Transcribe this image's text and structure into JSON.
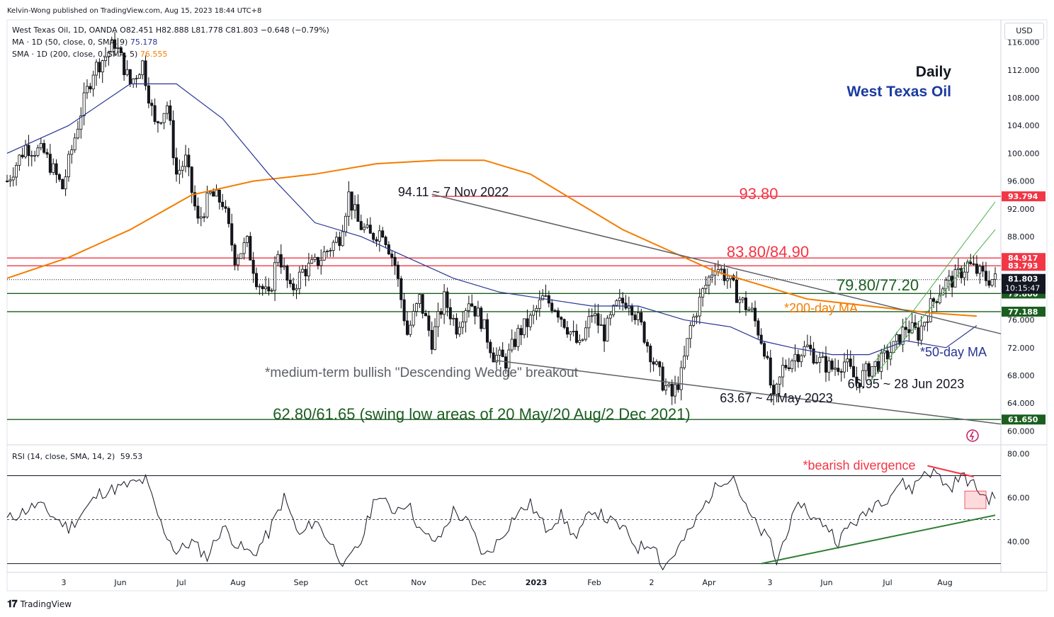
{
  "header": {
    "published": "Kelvin-Wong published on TradingView.com, Aug 15, 2023 18:44 UTC+8",
    "symbol_line": "West Texas Oil, 1D, OANDA  O82.451  H82.888  L81.778  C81.803  −0.648 (−0.79%)",
    "ma50_line": "MA · 1D (50, close, 0, SMA, 9)",
    "ma50_value": "75.178",
    "sma200_line": "SMA · 1D (200, close, 0, SMA, 5)",
    "sma200_value": "76.555",
    "rsi_line": "RSI (14, close, SMA, 14, 2)",
    "rsi_value": "59.53",
    "currency": "USD"
  },
  "footer": {
    "brand": "TradingView",
    "logo": "tradingview-logo-icon"
  },
  "colors": {
    "resistance": "#f23645",
    "support": "#1b5e20",
    "ma200": "#f57c00",
    "ma50": "#283593",
    "wedge": "#5d6066",
    "channel": "#4caf50",
    "price_label_bg": "#131722"
  },
  "chart_data": [
    {
      "type": "candlestick",
      "title": "Daily",
      "subtitle": "West Texas Oil",
      "x_ticks": [
        "3",
        "Jun",
        "Jul",
        "Aug",
        "Sep",
        "Oct",
        "Nov",
        "Dec",
        "2023",
        "Feb",
        "2",
        "Apr",
        "3",
        "Jun",
        "Jul",
        "Aug"
      ],
      "y_ticks": [
        "116.000",
        "112.000",
        "108.000",
        "104.000",
        "100.000",
        "96.000",
        "92.000",
        "88.000",
        "84.000",
        "80.000",
        "76.000",
        "72.000",
        "68.000",
        "64.000",
        "60.000"
      ],
      "ylim": [
        58.0,
        118.0
      ],
      "grid": false,
      "levels": [
        {
          "value": 93.8,
          "label": "93.80",
          "axis_label": "93.794",
          "color": "resistance"
        },
        {
          "value": 84.917,
          "label": "83.80/84.90",
          "axis_label": "84.917",
          "color": "resistance"
        },
        {
          "value": 83.793,
          "label": "",
          "axis_label": "83.793",
          "color": "resistance"
        },
        {
          "value": 79.8,
          "label": "79.80/77.20",
          "axis_label": "79.800",
          "color": "support"
        },
        {
          "value": 77.188,
          "label": "",
          "axis_label": "77.188",
          "color": "support"
        },
        {
          "value": 61.65,
          "label": "62.80/61.65 (swing low areas of 20 May/20 Aug/2 Dec 2021)",
          "axis_label": "61.650",
          "color": "support"
        }
      ],
      "last_price": {
        "value": 81.803,
        "label": "81.803",
        "countdown": "10:15:47"
      },
      "annotations": [
        "94.11 ~ 7 Nov 2022",
        "*medium-term bullish \"Descending Wedge\" breakout",
        "63.67 ~ 4 May 2023",
        "66.95 ~ 28 Jun 2023",
        "*200-day MA",
        "*50-day MA"
      ],
      "close_path": [
        [
          0,
          96
        ],
        [
          6,
          101
        ],
        [
          12,
          100
        ],
        [
          18,
          95
        ],
        [
          24,
          106
        ],
        [
          28,
          112
        ],
        [
          32,
          114
        ],
        [
          35,
          116
        ],
        [
          40,
          110
        ],
        [
          44,
          113
        ],
        [
          48,
          104
        ],
        [
          52,
          107
        ],
        [
          55,
          97
        ],
        [
          58,
          99
        ],
        [
          62,
          90
        ],
        [
          66,
          94
        ],
        [
          70,
          93
        ],
        [
          74,
          85
        ],
        [
          78,
          87
        ],
        [
          81,
          82
        ],
        [
          85,
          79
        ],
        [
          88,
          86
        ],
        [
          92,
          80
        ],
        [
          96,
          83
        ],
        [
          100,
          84
        ],
        [
          104,
          86
        ],
        [
          108,
          88
        ],
        [
          111,
          94
        ],
        [
          114,
          90
        ],
        [
          118,
          88
        ],
        [
          122,
          89
        ],
        [
          126,
          84
        ],
        [
          130,
          74
        ],
        [
          134,
          79
        ],
        [
          138,
          73
        ],
        [
          142,
          79
        ],
        [
          146,
          75
        ],
        [
          150,
          79
        ],
        [
          154,
          76
        ],
        [
          158,
          71
        ],
        [
          162,
          70
        ],
        [
          166,
          74
        ],
        [
          170,
          76
        ],
        [
          174,
          79
        ],
        [
          178,
          78
        ],
        [
          182,
          75
        ],
        [
          186,
          72
        ],
        [
          190,
          77
        ],
        [
          194,
          74
        ],
        [
          198,
          78
        ],
        [
          202,
          79
        ],
        [
          206,
          75
        ],
        [
          210,
          70
        ],
        [
          213,
          67
        ],
        [
          216,
          65
        ],
        [
          219,
          68
        ],
        [
          222,
          75
        ],
        [
          226,
          80
        ],
        [
          230,
          84
        ],
        [
          234,
          82
        ],
        [
          238,
          79
        ],
        [
          242,
          77
        ],
        [
          246,
          72
        ],
        [
          249,
          64
        ],
        [
          252,
          69
        ],
        [
          256,
          71
        ],
        [
          260,
          72
        ],
        [
          264,
          70
        ],
        [
          268,
          69
        ],
        [
          272,
          70
        ],
        [
          276,
          67
        ],
        [
          280,
          69
        ],
        [
          284,
          70
        ],
        [
          288,
          72
        ],
        [
          292,
          75
        ],
        [
          296,
          74
        ],
        [
          300,
          78
        ],
        [
          304,
          81
        ],
        [
          308,
          82
        ],
        [
          312,
          84
        ],
        [
          315,
          83
        ],
        [
          318,
          82
        ],
        [
          321,
          81.8
        ]
      ],
      "ma200_path": [
        [
          0,
          82
        ],
        [
          20,
          85
        ],
        [
          40,
          89
        ],
        [
          60,
          94
        ],
        [
          80,
          96
        ],
        [
          100,
          97
        ],
        [
          120,
          98.5
        ],
        [
          140,
          99
        ],
        [
          155,
          99
        ],
        [
          170,
          97
        ],
        [
          185,
          93
        ],
        [
          200,
          89
        ],
        [
          215,
          86
        ],
        [
          230,
          83
        ],
        [
          245,
          81
        ],
        [
          260,
          79
        ],
        [
          280,
          78
        ],
        [
          300,
          77
        ],
        [
          315,
          76.55
        ]
      ],
      "ma50_path": [
        [
          0,
          100
        ],
        [
          20,
          104
        ],
        [
          40,
          110
        ],
        [
          55,
          110
        ],
        [
          70,
          105
        ],
        [
          85,
          97
        ],
        [
          100,
          90
        ],
        [
          115,
          88
        ],
        [
          130,
          85
        ],
        [
          145,
          82
        ],
        [
          160,
          80
        ],
        [
          175,
          79
        ],
        [
          190,
          78
        ],
        [
          205,
          78
        ],
        [
          220,
          76
        ],
        [
          235,
          75
        ],
        [
          245,
          73
        ],
        [
          255,
          72
        ],
        [
          268,
          71
        ],
        [
          280,
          71
        ],
        [
          292,
          73
        ],
        [
          305,
          72
        ],
        [
          315,
          75.18
        ]
      ],
      "wedge_upper": [
        [
          138,
          94.1
        ],
        [
          320,
          74
        ]
      ],
      "wedge_lower": [
        [
          158,
          70.2
        ],
        [
          320,
          61
        ]
      ],
      "channel": [
        [
          [
            280,
            67
          ],
          [
            321,
            89
          ]
        ],
        [
          [
            282,
            70
          ],
          [
            321,
            93
          ]
        ]
      ]
    },
    {
      "type": "line",
      "title": "",
      "ylabel": "",
      "y_ticks": [
        "80.00",
        "60.00",
        "40.00"
      ],
      "ylim": [
        26,
        84
      ],
      "bands": [
        30,
        70
      ],
      "midline": 50,
      "annotations": [
        "*bearish divergence"
      ],
      "values_path": [
        [
          0,
          50
        ],
        [
          10,
          57
        ],
        [
          20,
          46
        ],
        [
          30,
          62
        ],
        [
          40,
          66
        ],
        [
          45,
          68
        ],
        [
          50,
          48
        ],
        [
          55,
          35
        ],
        [
          60,
          40
        ],
        [
          65,
          33
        ],
        [
          70,
          47
        ],
        [
          75,
          38
        ],
        [
          80,
          34
        ],
        [
          85,
          44
        ],
        [
          90,
          60
        ],
        [
          95,
          42
        ],
        [
          100,
          50
        ],
        [
          110,
          29
        ],
        [
          115,
          40
        ],
        [
          120,
          62
        ],
        [
          125,
          54
        ],
        [
          130,
          58
        ],
        [
          135,
          43
        ],
        [
          140,
          40
        ],
        [
          145,
          54
        ],
        [
          150,
          48
        ],
        [
          155,
          33
        ],
        [
          160,
          41
        ],
        [
          165,
          52
        ],
        [
          170,
          57
        ],
        [
          175,
          46
        ],
        [
          180,
          52
        ],
        [
          185,
          41
        ],
        [
          190,
          55
        ],
        [
          195,
          50
        ],
        [
          200,
          46
        ],
        [
          205,
          37
        ],
        [
          210,
          40
        ],
        [
          213,
          28
        ],
        [
          216,
          33
        ],
        [
          222,
          45
        ],
        [
          228,
          60
        ],
        [
          232,
          68
        ],
        [
          236,
          70
        ],
        [
          240,
          55
        ],
        [
          244,
          46
        ],
        [
          248,
          40
        ],
        [
          250,
          30
        ],
        [
          253,
          44
        ],
        [
          258,
          58
        ],
        [
          262,
          50
        ],
        [
          266,
          48
        ],
        [
          270,
          40
        ],
        [
          274,
          48
        ],
        [
          278,
          51
        ],
        [
          282,
          58
        ],
        [
          286,
          60
        ],
        [
          290,
          67
        ],
        [
          294,
          64
        ],
        [
          298,
          72
        ],
        [
          302,
          71
        ],
        [
          306,
          64
        ],
        [
          310,
          70
        ],
        [
          313,
          67
        ],
        [
          318,
          60
        ],
        [
          321,
          59.53
        ]
      ],
      "divergence_line": [
        [
          299,
          74.5
        ],
        [
          314,
          69.5
        ]
      ],
      "support_trend": [
        [
          245,
          30
        ],
        [
          321,
          52
        ]
      ],
      "highlight_box": {
        "from": 55,
        "to": 63
      }
    }
  ]
}
